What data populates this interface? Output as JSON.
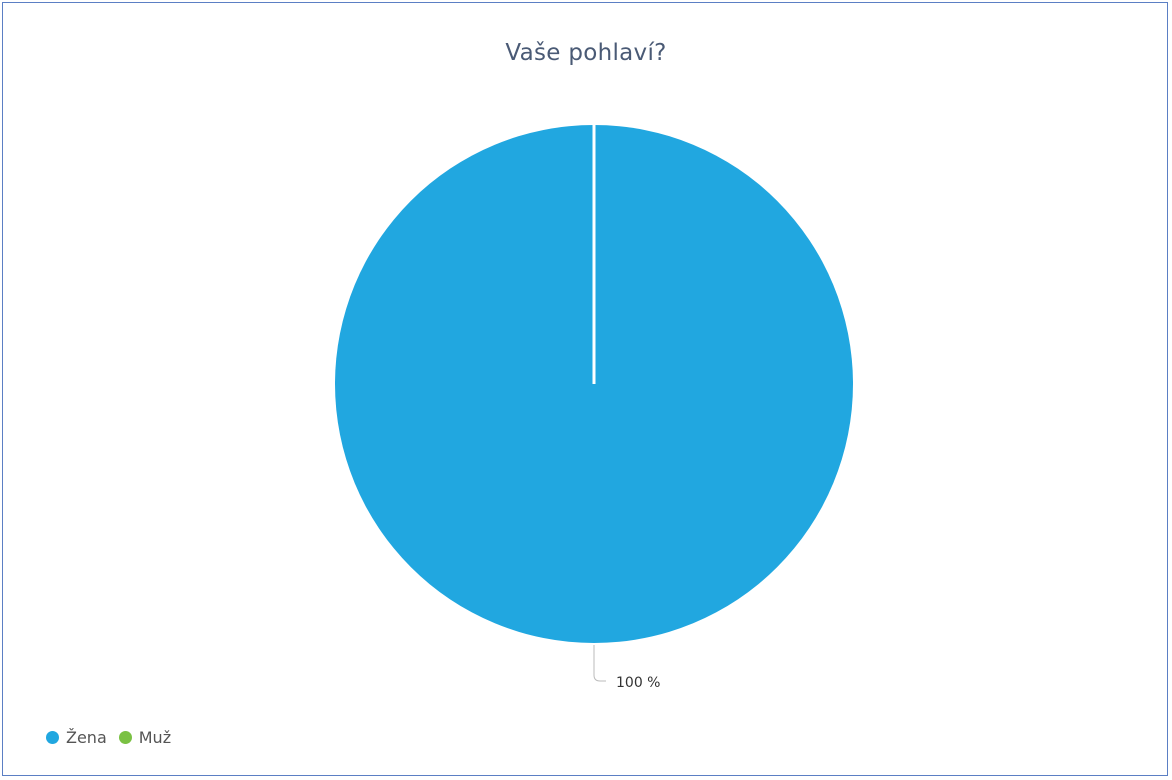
{
  "chart_data": {
    "type": "pie",
    "title": "Vaše pohlaví?",
    "slices": [
      {
        "label": "Žena",
        "value": 100,
        "color": "#21a7e0",
        "data_label": "100 %"
      },
      {
        "label": "Muž",
        "value": 0,
        "color": "#7ac143"
      }
    ],
    "legend_position": "bottom-left"
  }
}
